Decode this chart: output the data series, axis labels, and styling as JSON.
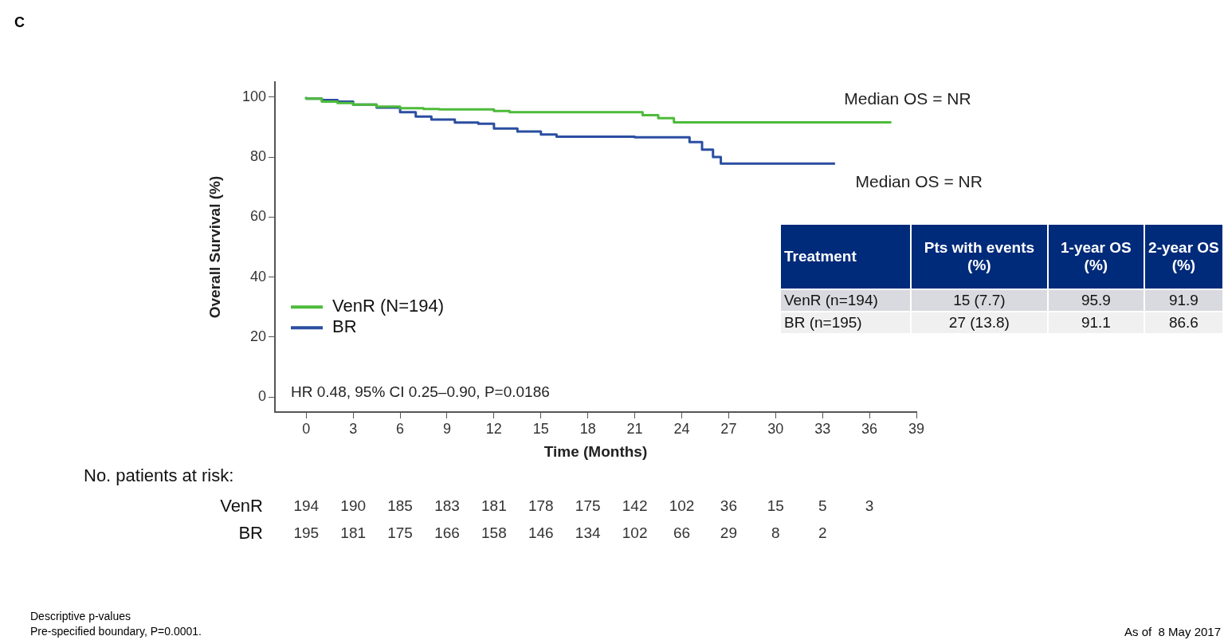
{
  "chart_data": {
    "type": "step",
    "xlabel": "Time (Months)",
    "ylabel": "Overall Survival (%)",
    "xlim": [
      -2,
      39
    ],
    "xticks": [
      0,
      3,
      6,
      9,
      12,
      15,
      18,
      21,
      24,
      27,
      30,
      33,
      36,
      39
    ],
    "ylim": [
      -5,
      105
    ],
    "yticks": [
      0,
      20,
      40,
      60,
      80,
      100
    ],
    "grid": false,
    "legend": "bottom left",
    "marker": "none",
    "line_style": "solid",
    "series": [
      {
        "name": "VenR (N=194)",
        "color": "#4dbb3a",
        "x": [
          0,
          1,
          2,
          3,
          4.5,
          6,
          7.5,
          8.5,
          12,
          13,
          21.5,
          22.5,
          23.5,
          24.5,
          37.4
        ],
        "values": [
          100,
          99.5,
          98.5,
          98,
          97.5,
          96.8,
          96.3,
          96,
          95.9,
          95.4,
          95,
          94,
          93,
          91.6,
          91.6
        ]
      },
      {
        "name": "BR",
        "color": "#2a4ea0",
        "x": [
          0,
          1,
          2,
          3,
          4.5,
          6,
          7,
          8,
          9.5,
          11,
          12,
          13.5,
          15,
          16,
          21,
          24.5,
          25.3,
          26,
          26.5,
          27,
          33.8
        ],
        "values": [
          100,
          99.5,
          99,
          98.5,
          97.5,
          96.5,
          95,
          93.5,
          92.5,
          91.5,
          91.1,
          89.5,
          88.5,
          87.5,
          86.8,
          86.6,
          85,
          82.5,
          80,
          77.8,
          77.8
        ]
      }
    ],
    "annotations": [
      "C",
      {
        "text": "Median OS = NR",
        "x": 37.4,
        "y": 91.6
      },
      {
        "text": "Median OS = NR",
        "x": 33.8,
        "y": 77.8
      },
      "HR 0.48, 95% CI 0.25–0.90, P=0.0186",
      "No. patients at risk:",
      "VenR 194 190 185 183 181 178 175 142 102 36 15 5 3",
      "BR 195 181 175 166 158 146 134 102 66 29 8 2",
      "Treatment",
      "Pts with events (%)",
      "1-year OS (%)",
      "2-year OS (%)",
      "VenR (n=194)",
      "15 (7.7)",
      "95.9",
      "91.9",
      "BR (n=195)",
      "27 (13.8)",
      "91.1",
      "86.6",
      "Descriptive p-values",
      "Pre-specified boundary, P=0.0001.",
      "As of  8 May 2017"
    ]
  }
}
